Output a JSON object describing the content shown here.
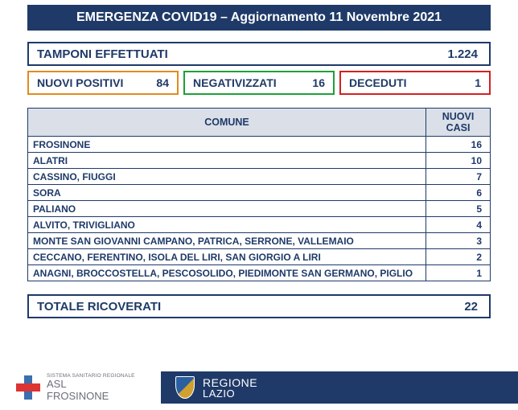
{
  "header": "EMERGENZA COVID19 – Aggiornamento 11 Novembre 2021",
  "tamponi": {
    "label": "TAMPONI EFFETTUATI",
    "value": "1.224",
    "border": "#1f3a68"
  },
  "boxes": [
    {
      "label": "NUOVI POSITIVI",
      "value": "84",
      "border": "#e28b1f"
    },
    {
      "label": "NEGATIVIZZATI",
      "value": "16",
      "border": "#1fa038"
    },
    {
      "label": "DECEDUTI",
      "value": "1",
      "border": "#d22020"
    }
  ],
  "table": {
    "col_comune": "COMUNE",
    "col_nuovi": "NUOVI CASI",
    "rows": [
      {
        "comune": "FROSINONE",
        "n": "16"
      },
      {
        "comune": "ALATRI",
        "n": "10"
      },
      {
        "comune": "CASSINO, FIUGGI",
        "n": "7"
      },
      {
        "comune": "SORA",
        "n": "6"
      },
      {
        "comune": "PALIANO",
        "n": "5"
      },
      {
        "comune": "ALVITO, TRIVIGLIANO",
        "n": "4"
      },
      {
        "comune": "MONTE SAN GIOVANNI CAMPANO, PATRICA, SERRONE, VALLEMAIO",
        "n": "3"
      },
      {
        "comune": "CECCANO, FERENTINO, ISOLA DEL LIRI, SAN GIORGIO A LIRI",
        "n": "2"
      },
      {
        "comune": "ANAGNI, BROCCOSTELLA, PESCOSOLIDO, PIEDIMONTE SAN GERMANO, PIGLIO",
        "n": "1"
      }
    ]
  },
  "ricoverati": {
    "label": "TOTALE RICOVERATI",
    "value": "22"
  },
  "footer": {
    "asl_top": "SISTEMA SANITARIO REGIONALE",
    "asl_line1": "ASL",
    "asl_line2": "FROSINONE",
    "regione_line1": "REGIONE",
    "regione_line2": "LAZIO"
  },
  "colors": {
    "primary": "#1f3a68",
    "header_bg": "#1f3a68",
    "th_bg": "#dadfe8"
  }
}
